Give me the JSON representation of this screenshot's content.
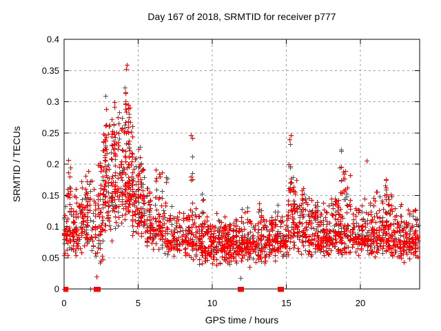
{
  "chart_data": {
    "type": "scatter",
    "title": "Day 167 of 2018, SRMTID for receiver p777",
    "xlabel": "GPS time / hours",
    "ylabel": "SRMTID / TECUs",
    "xlim": [
      0,
      24
    ],
    "ylim": [
      0,
      0.4
    ],
    "xticks": [
      0,
      5,
      10,
      15,
      20
    ],
    "yticks": [
      0,
      0.05,
      0.1,
      0.15,
      0.2,
      0.25,
      0.3,
      0.35,
      0.4
    ],
    "grid": true,
    "legend": "none",
    "marker": "plus",
    "marker_color": "#ff0000",
    "grid_color": "#9a9a9a",
    "axis_color": "#000000",
    "background": "#ffffff",
    "seed": 167,
    "bands": [
      {
        "x0": 0.0,
        "x1": 1.0,
        "n": 110,
        "ymin": 0.05,
        "ymode": 0.095,
        "ymax": 0.17
      },
      {
        "x0": 1.0,
        "x1": 2.1,
        "n": 95,
        "ymin": 0.055,
        "ymode": 0.1,
        "ymax": 0.19
      },
      {
        "x0": 2.1,
        "x1": 2.6,
        "n": 45,
        "ymin": 0.03,
        "ymode": 0.1,
        "ymax": 0.21
      },
      {
        "x0": 2.6,
        "x1": 3.2,
        "n": 70,
        "ymin": 0.07,
        "ymode": 0.15,
        "ymax": 0.28
      },
      {
        "x0": 3.2,
        "x1": 3.9,
        "n": 85,
        "ymin": 0.09,
        "ymode": 0.16,
        "ymax": 0.3
      },
      {
        "x0": 3.9,
        "x1": 4.6,
        "n": 100,
        "ymin": 0.1,
        "ymode": 0.17,
        "ymax": 0.33
      },
      {
        "x0": 4.6,
        "x1": 5.4,
        "n": 100,
        "ymin": 0.08,
        "ymode": 0.14,
        "ymax": 0.26
      },
      {
        "x0": 5.4,
        "x1": 6.6,
        "n": 110,
        "ymin": 0.06,
        "ymode": 0.1,
        "ymax": 0.2
      },
      {
        "x0": 6.6,
        "x1": 8.4,
        "n": 140,
        "ymin": 0.05,
        "ymode": 0.08,
        "ymax": 0.145
      },
      {
        "x0": 8.4,
        "x1": 9.1,
        "n": 55,
        "ymin": 0.045,
        "ymode": 0.075,
        "ymax": 0.14
      },
      {
        "x0": 9.1,
        "x1": 11.6,
        "n": 260,
        "ymin": 0.035,
        "ymode": 0.075,
        "ymax": 0.125
      },
      {
        "x0": 11.6,
        "x1": 13.1,
        "n": 150,
        "ymin": 0.04,
        "ymode": 0.075,
        "ymax": 0.135
      },
      {
        "x0": 13.1,
        "x1": 14.6,
        "n": 150,
        "ymin": 0.04,
        "ymode": 0.08,
        "ymax": 0.145
      },
      {
        "x0": 14.6,
        "x1": 15.1,
        "n": 45,
        "ymin": 0.05,
        "ymode": 0.08,
        "ymax": 0.13
      },
      {
        "x0": 15.1,
        "x1": 15.7,
        "n": 65,
        "ymin": 0.05,
        "ymode": 0.1,
        "ymax": 0.21
      },
      {
        "x0": 15.7,
        "x1": 17.1,
        "n": 130,
        "ymin": 0.05,
        "ymode": 0.09,
        "ymax": 0.165
      },
      {
        "x0": 17.1,
        "x1": 18.3,
        "n": 115,
        "ymin": 0.05,
        "ymode": 0.085,
        "ymax": 0.15
      },
      {
        "x0": 18.3,
        "x1": 19.3,
        "n": 105,
        "ymin": 0.05,
        "ymode": 0.095,
        "ymax": 0.185
      },
      {
        "x0": 19.3,
        "x1": 20.7,
        "n": 125,
        "ymin": 0.05,
        "ymode": 0.085,
        "ymax": 0.15
      },
      {
        "x0": 20.7,
        "x1": 22.1,
        "n": 145,
        "ymin": 0.05,
        "ymode": 0.09,
        "ymax": 0.165
      },
      {
        "x0": 22.1,
        "x1": 23.9,
        "n": 180,
        "ymin": 0.04,
        "ymode": 0.082,
        "ymax": 0.14
      }
    ],
    "streaks": [
      {
        "x": 0.35,
        "n": 8,
        "ymin": 0.15,
        "ymax": 0.21
      },
      {
        "x": 1.6,
        "n": 6,
        "ymin": 0.13,
        "ymax": 0.2
      },
      {
        "x": 2.35,
        "n": 7,
        "ymin": 0.12,
        "ymax": 0.21
      },
      {
        "x": 2.65,
        "n": 10,
        "ymin": 0.15,
        "ymax": 0.27
      },
      {
        "x": 2.85,
        "n": 12,
        "ymin": 0.16,
        "ymax": 0.31
      },
      {
        "x": 3.35,
        "n": 8,
        "ymin": 0.2,
        "ymax": 0.3
      },
      {
        "x": 4.15,
        "n": 10,
        "ymin": 0.25,
        "ymax": 0.363
      },
      {
        "x": 4.35,
        "n": 8,
        "ymin": 0.2,
        "ymax": 0.3
      },
      {
        "x": 5.05,
        "n": 6,
        "ymin": 0.18,
        "ymax": 0.26
      },
      {
        "x": 6.9,
        "n": 5,
        "ymin": 0.13,
        "ymax": 0.19
      },
      {
        "x": 8.6,
        "n": 7,
        "ymin": 0.17,
        "ymax": 0.25
      },
      {
        "x": 9.35,
        "n": 5,
        "ymin": 0.12,
        "ymax": 0.155
      },
      {
        "x": 15.25,
        "n": 9,
        "ymin": 0.15,
        "ymax": 0.248
      },
      {
        "x": 16.1,
        "n": 5,
        "ymin": 0.13,
        "ymax": 0.19
      },
      {
        "x": 18.65,
        "n": 8,
        "ymin": 0.15,
        "ymax": 0.225
      },
      {
        "x": 18.9,
        "n": 6,
        "ymin": 0.14,
        "ymax": 0.2
      },
      {
        "x": 21.7,
        "n": 6,
        "ymin": 0.13,
        "ymax": 0.187
      }
    ],
    "outliers": [
      [
        0.0,
        0.0
      ],
      [
        2.2,
        0.02
      ],
      [
        11.9,
        0.018
      ],
      [
        12.5,
        0.035
      ],
      [
        20.4,
        0.205
      ]
    ],
    "zero_squares": [
      0.08,
      2.15,
      2.3,
      11.85,
      11.95,
      14.55,
      14.65
    ],
    "zero_plusses": [
      1.75
    ]
  }
}
